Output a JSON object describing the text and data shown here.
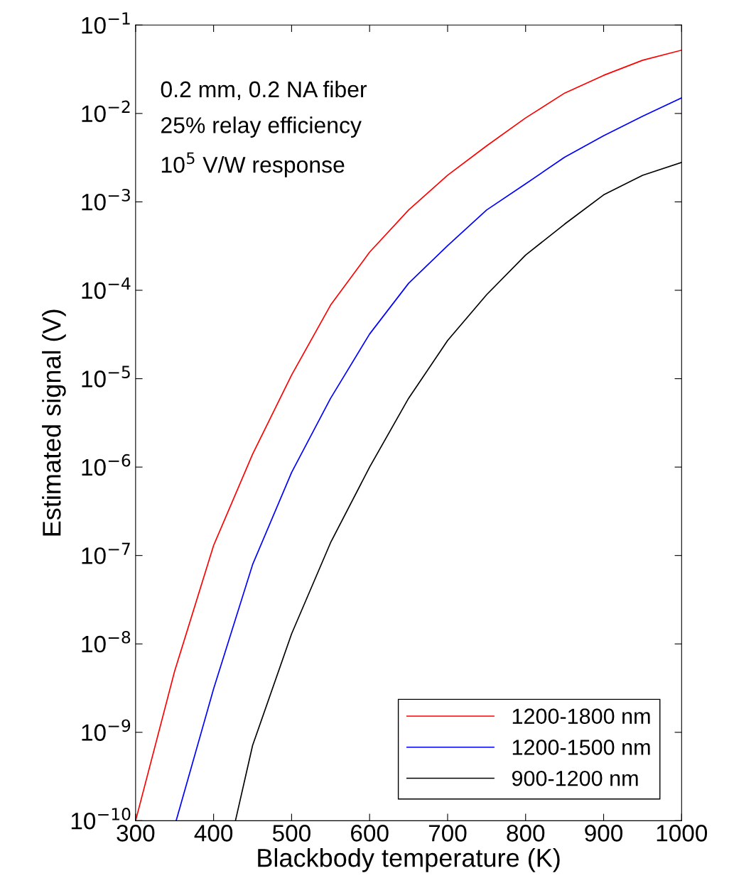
{
  "chart_data": {
    "type": "line",
    "xlabel": "Blackbody temperature (K)",
    "ylabel": "Estimated signal (V)",
    "log": "y",
    "xlim": [
      300,
      1000
    ],
    "xticks": [
      300,
      400,
      500,
      600,
      700,
      800,
      900,
      1000
    ],
    "ylim": [
      1e-10,
      0.1
    ],
    "yticks": [
      {
        "value": 1e-10,
        "label": "10$^{−10}$"
      },
      {
        "value": 1e-09,
        "label": "10$^{−9}$"
      },
      {
        "value": 1e-08,
        "label": "10$^{−8}$"
      },
      {
        "value": 1e-07,
        "label": "10$^{−7}$"
      },
      {
        "value": 1e-06,
        "label": "10$^{−6}$"
      },
      {
        "value": 1e-05,
        "label": "10$^{−5}$"
      },
      {
        "value": 0.0001,
        "label": "10$^{−4}$"
      },
      {
        "value": 0.001,
        "label": "10$^{−3}$"
      },
      {
        "value": 0.01,
        "label": "10$^{−2}$"
      },
      {
        "value": 0.1,
        "label": "10$^{−1}$"
      }
    ],
    "grid": false,
    "legend": "bottom right",
    "marker": "none",
    "line_style": "solid",
    "annotations": [
      "0.2 mm, 0.2 NA fiber",
      "25% relay efficiency",
      "10$^{5}$ V/W response"
    ],
    "series": [
      {
        "name": "1200-1800 nm",
        "color": "#ff0000",
        "x": [
          300,
          350,
          400,
          450,
          500,
          550,
          600,
          650,
          700,
          750,
          800,
          850,
          900,
          950,
          1000
        ],
        "values": [
          1e-10,
          4.9e-09,
          1.3e-07,
          1.4e-06,
          1.1e-05,
          6.8e-05,
          0.00027,
          0.00081,
          0.002,
          0.0043,
          0.0089,
          0.017,
          0.027,
          0.04,
          0.052
        ]
      },
      {
        "name": "1200-1500 nm",
        "color": "#0000ff",
        "x": [
          352,
          400,
          450,
          500,
          550,
          600,
          650,
          700,
          750,
          800,
          850,
          900,
          950,
          1000
        ],
        "values": [
          1e-10,
          3.1e-09,
          7.9e-08,
          8.7e-07,
          6e-06,
          3.2e-05,
          0.00012,
          0.00032,
          0.00081,
          0.0016,
          0.0032,
          0.0056,
          0.0093,
          0.015
        ]
      },
      {
        "name": "900-1200 nm",
        "color": "#000000",
        "x": [
          428,
          450,
          500,
          550,
          600,
          650,
          700,
          750,
          800,
          850,
          900,
          950,
          1000
        ],
        "values": [
          1e-10,
          7.1e-10,
          1.3e-08,
          1.4e-07,
          1e-06,
          6e-06,
          2.7e-05,
          8.9e-05,
          0.00025,
          0.00056,
          0.0012,
          0.002,
          0.0028
        ]
      }
    ]
  }
}
